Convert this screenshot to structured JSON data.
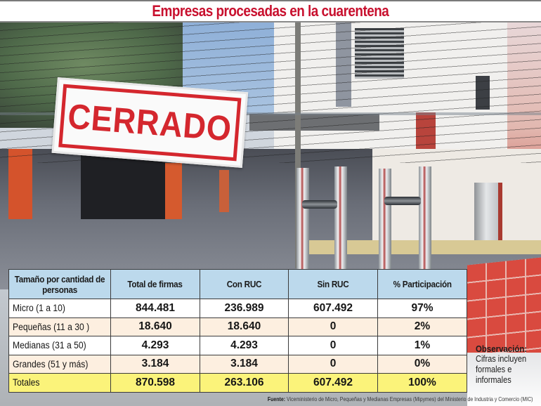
{
  "title": "Empresas procesadas en la cuarentena",
  "photo": {
    "sign_text": "CERRADO",
    "description": "Glass shop door with closed sign and steel handles"
  },
  "table": {
    "headers": [
      "Tamaño por cantidad de personas",
      "Total de firmas",
      "Con RUC",
      "Sin RUC",
      "% Participación"
    ],
    "rows": [
      {
        "label": "Micro (1 a 10)",
        "total": "844.481",
        "con_ruc": "236.989",
        "sin_ruc": "607.492",
        "participacion": "97%"
      },
      {
        "label": "Pequeñas (11 a 30 )",
        "total": "18.640",
        "con_ruc": "18.640",
        "sin_ruc": "0",
        "participacion": "2%"
      },
      {
        "label": "Medianas (31 a 50)",
        "total": "4.293",
        "con_ruc": "4.293",
        "sin_ruc": "0",
        "participacion": "1%"
      },
      {
        "label": "Grandes (51 y más)",
        "total": "3.184",
        "con_ruc": "3.184",
        "sin_ruc": "0",
        "participacion": "0%"
      }
    ],
    "totals": {
      "label": "Totales",
      "total": "870.598",
      "con_ruc": "263.106",
      "sin_ruc": "607.492",
      "participacion": "100%"
    }
  },
  "observation": {
    "title": "Observación:",
    "body": "Cifras incluyen\nformales e\ninformales"
  },
  "source": {
    "label": "Fuente:",
    "text": "Viceministerio de Micro, Pequeñas y Medianas Empresas (Mipymes) del Ministerio de Industria y Comercio (MIC)"
  },
  "colors": {
    "title_red": "#c8102e",
    "header_blue": "#bcd9ec",
    "row_peach": "#fdefe0",
    "total_yellow": "#fbf37a",
    "sign_red": "#d4272e"
  }
}
